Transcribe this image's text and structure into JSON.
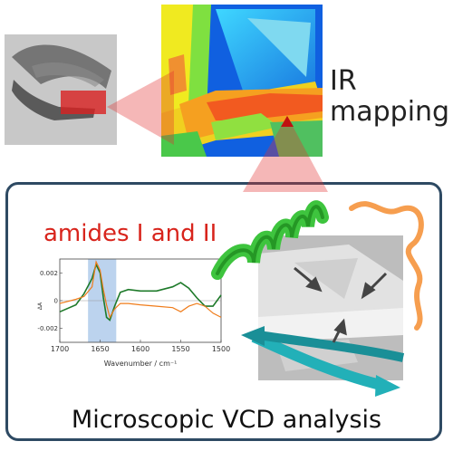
{
  "ir_label": {
    "line1": "IR",
    "line2": "mapping"
  },
  "amides_label": "amides I and II",
  "panel_title": "Microscopic VCD analysis",
  "colors": {
    "accent_red": "#d8241c",
    "panel_border": "#2e4a63",
    "series_green": "#1e7a2a",
    "series_orange": "#f07c1a",
    "highlight_band": "#bcd3ee"
  },
  "chart_data": {
    "type": "line",
    "title": "",
    "xlabel": "Wavenumber / cm⁻¹",
    "ylabel": "ΔA",
    "xlim": [
      1700,
      1500
    ],
    "ylim": [
      -0.003,
      0.003
    ],
    "x_ticks": [
      "1700",
      "1650",
      "1600",
      "1550",
      "1500"
    ],
    "y_ticks": [
      "0.002",
      "0",
      "-0.002"
    ],
    "highlight_band": [
      1665,
      1630
    ],
    "x": [
      1700,
      1680,
      1670,
      1660,
      1655,
      1650,
      1646,
      1642,
      1638,
      1632,
      1625,
      1615,
      1600,
      1580,
      1560,
      1550,
      1540,
      1530,
      1520,
      1510,
      1500
    ],
    "series": [
      {
        "values": [
          -0.0008,
          -0.0003,
          0.0005,
          0.0016,
          0.0026,
          0.002,
          0.0002,
          -0.0012,
          -0.0014,
          -0.0004,
          0.0006,
          0.0008,
          0.0007,
          0.0007,
          0.001,
          0.0013,
          0.0009,
          0.0002,
          -0.0004,
          -0.0004,
          0.0004
        ]
      },
      {
        "values": [
          -0.0002,
          0.0001,
          0.0003,
          0.001,
          0.0028,
          0.0022,
          0.0008,
          -0.0003,
          -0.0012,
          -0.0006,
          -0.0002,
          -0.0002,
          -0.0003,
          -0.0004,
          -0.0005,
          -0.0008,
          -0.0004,
          -0.0002,
          -0.0004,
          -0.0009,
          -0.0012
        ]
      }
    ]
  }
}
